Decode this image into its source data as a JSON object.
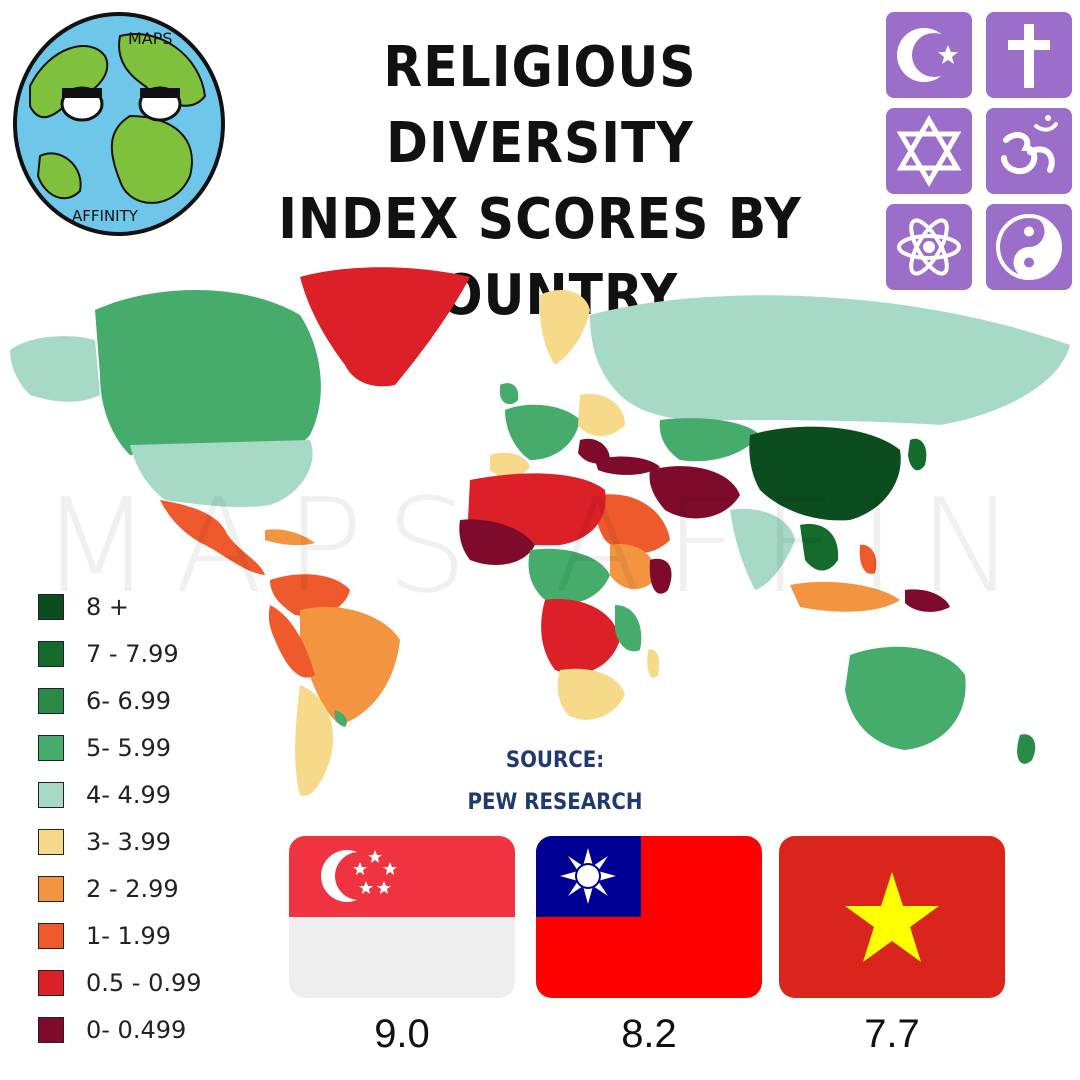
{
  "header": {
    "title_line1": "RELIGIOUS DIVERSITY",
    "title_line2": "INDEX SCORES BY",
    "title_line3": "COUNTRY"
  },
  "logo": {
    "icon": "globe-mascot-icon",
    "text_top": "MAPS",
    "text_bottom": "AFFINITY"
  },
  "watermark": "MAPS AFFINITY",
  "religion_icons": [
    {
      "name": "star-and-crescent-icon"
    },
    {
      "name": "cross-icon"
    },
    {
      "name": "star-of-david-icon"
    },
    {
      "name": "om-icon"
    },
    {
      "name": "atom-icon"
    },
    {
      "name": "yin-yang-icon"
    }
  ],
  "legend": [
    {
      "label": "8 +",
      "color": "#0b4d1e"
    },
    {
      "label": "7 - 7.99",
      "color": "#146b2c"
    },
    {
      "label": "6- 6.99",
      "color": "#2a8a47"
    },
    {
      "label": "5- 5.99",
      "color": "#45ac6c"
    },
    {
      "label": "4- 4.99",
      "color": "#a6dac7"
    },
    {
      "label": "3- 3.99",
      "color": "#f7d98a"
    },
    {
      "label": "2 - 2.99",
      "color": "#f39440"
    },
    {
      "label": "1- 1.99",
      "color": "#ef5a2c"
    },
    {
      "label": "0.5 - 0.99",
      "color": "#db2027"
    },
    {
      "label": "0- 0.499",
      "color": "#7e0b2b"
    }
  ],
  "source": {
    "line1": "SOURCE:",
    "line2": "PEW RESEARCH"
  },
  "top_countries": [
    {
      "flag": "singapore-flag",
      "score": "9.0"
    },
    {
      "flag": "taiwan-flag",
      "score": "8.2"
    },
    {
      "flag": "vietnam-flag",
      "score": "7.7"
    }
  ],
  "colors": {
    "icon_tile": "#9b6ec9",
    "source_text": "#1f3a70"
  }
}
